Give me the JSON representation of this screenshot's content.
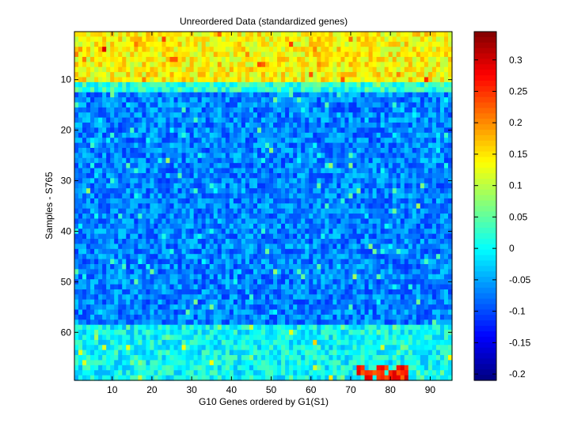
{
  "chart_data": {
    "type": "heatmap",
    "title": "Unreordered Data (standardized genes)",
    "xlabel": "G10 Genes ordered by G1(S1)",
    "ylabel": "Samples - S765",
    "n_cols": 95,
    "n_rows": 69,
    "x_ticks": [
      10,
      20,
      30,
      40,
      50,
      60,
      70,
      80,
      90
    ],
    "y_ticks": [
      10,
      20,
      30,
      40,
      50,
      60
    ],
    "y_direction": "reverse",
    "colormap": "jet",
    "clim": [
      -0.21,
      0.345
    ],
    "colorbar_ticks": [
      -0.2,
      -0.15,
      -0.1,
      -0.05,
      0,
      0.05,
      0.1,
      0.15,
      0.2,
      0.25,
      0.3
    ],
    "colorbar_tick_labels": [
      "-0.2",
      "-0.15",
      "-0.1",
      "-0.05",
      "0",
      "0.05",
      "0.1",
      "0.15",
      "0.2",
      "0.25",
      "0.3"
    ],
    "row_profile": [
      {
        "rows": [
          1,
          10
        ],
        "level": 0.14
      },
      {
        "rows": [
          11,
          12
        ],
        "level": 0.02
      },
      {
        "rows": [
          13,
          58
        ],
        "level": -0.07
      },
      {
        "rows": [
          59,
          69
        ],
        "level": 0.0
      }
    ],
    "highlights": [
      {
        "rows": [
          67,
          69
        ],
        "cols": [
          72,
          84
        ],
        "level": 0.3
      }
    ],
    "grid": false,
    "legend": "colorbar-right"
  }
}
